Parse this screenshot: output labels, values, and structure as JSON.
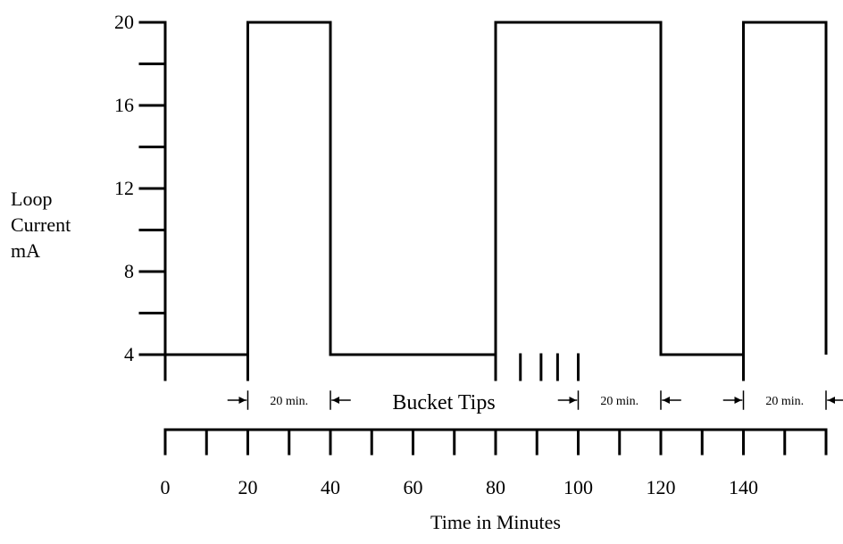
{
  "chart_data": {
    "type": "line",
    "ylabel_lines": [
      "Loop",
      "Current",
      "mA"
    ],
    "xlabel": "Time in Minutes",
    "yticks_labeled": [
      4,
      8,
      12,
      16,
      20
    ],
    "yminor": [
      6,
      10,
      14,
      18
    ],
    "ylim": [
      4,
      20
    ],
    "xlim": [
      0,
      160
    ],
    "xticks": [
      0,
      10,
      20,
      30,
      40,
      50,
      60,
      70,
      80,
      90,
      100,
      110,
      120,
      130,
      140,
      150,
      160
    ],
    "xtick_labels": [
      "0",
      "20",
      "40",
      "60",
      "80",
      "100",
      "120",
      "140"
    ],
    "xtick_label_values": [
      0,
      20,
      40,
      60,
      80,
      100,
      120,
      140
    ],
    "pulses": [
      {
        "start": 20,
        "end": 40
      },
      {
        "start": 80,
        "end": 120
      },
      {
        "start": 140,
        "end": 160
      }
    ],
    "bucket_tips": [
      86,
      91,
      95,
      100
    ],
    "bucket_tips_label": "Bucket Tips",
    "durations": [
      {
        "from": 20,
        "to": 40,
        "label": "20 min."
      },
      {
        "from": 100,
        "to": 120,
        "label": "20 min."
      },
      {
        "from": 140,
        "to": 160,
        "label": "20 min."
      }
    ],
    "colors": {
      "line": "#000000",
      "background": "#ffffff"
    }
  }
}
